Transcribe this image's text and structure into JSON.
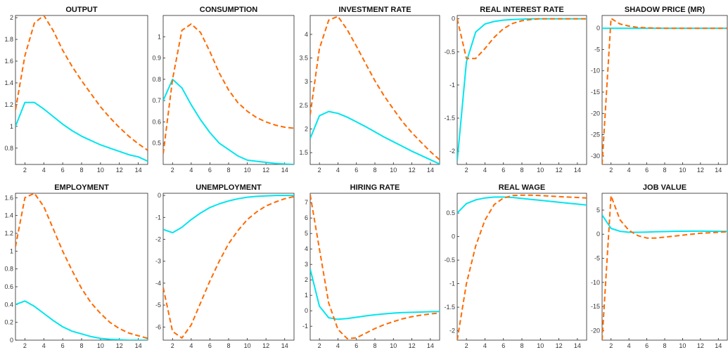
{
  "figure": {
    "colors": {
      "series_solid": "#00e5ee",
      "series_dashed": "#ff6a00",
      "axes": "#262626"
    }
  },
  "chart_data": [
    {
      "type": "line",
      "title": "OUTPUT",
      "xlim": [
        1,
        15
      ],
      "ylim": [
        0.65,
        2.02
      ],
      "xticks": [
        2,
        4,
        6,
        8,
        10,
        12,
        14
      ],
      "yticks": [
        0.8,
        1,
        1.2,
        1.4,
        1.6,
        1.8,
        2
      ],
      "xtick_labels": [
        "2",
        "4",
        "6",
        "8",
        "10",
        "12",
        "14"
      ],
      "ytick_labels": [
        "0.8",
        "1",
        "1.2",
        "1.4",
        "1.6",
        "1.8",
        "2"
      ],
      "x": [
        1,
        2,
        3,
        4,
        5,
        6,
        7,
        8,
        9,
        10,
        11,
        12,
        13,
        14,
        15
      ],
      "series": [
        {
          "style": "solid",
          "values": [
            1.0,
            1.22,
            1.22,
            1.16,
            1.09,
            1.02,
            0.96,
            0.91,
            0.87,
            0.83,
            0.8,
            0.77,
            0.74,
            0.72,
            0.68
          ]
        },
        {
          "style": "dashed",
          "values": [
            1.15,
            1.65,
            1.95,
            2.02,
            1.88,
            1.7,
            1.55,
            1.42,
            1.3,
            1.18,
            1.08,
            0.99,
            0.91,
            0.84,
            0.78
          ]
        }
      ]
    },
    {
      "type": "line",
      "title": "CONSUMPTION",
      "xlim": [
        1,
        15
      ],
      "ylim": [
        0.4,
        1.1
      ],
      "xticks": [
        2,
        4,
        6,
        8,
        10,
        12,
        14
      ],
      "yticks": [
        0.5,
        0.6,
        0.7,
        0.8,
        0.9,
        1
      ],
      "xtick_labels": [
        "2",
        "4",
        "6",
        "8",
        "10",
        "12",
        "14"
      ],
      "ytick_labels": [
        "0.5",
        "0.6",
        "0.7",
        "0.8",
        "0.9",
        "1"
      ],
      "x": [
        1,
        2,
        3,
        4,
        5,
        6,
        7,
        8,
        9,
        10,
        11,
        12,
        13,
        14,
        15
      ],
      "series": [
        {
          "style": "solid",
          "values": [
            0.7,
            0.8,
            0.76,
            0.68,
            0.61,
            0.55,
            0.5,
            0.47,
            0.44,
            0.42,
            0.415,
            0.41,
            0.405,
            0.402,
            0.4
          ]
        },
        {
          "style": "dashed",
          "values": [
            0.45,
            0.8,
            1.03,
            1.06,
            1.02,
            0.93,
            0.83,
            0.75,
            0.69,
            0.65,
            0.62,
            0.6,
            0.585,
            0.575,
            0.57
          ]
        }
      ]
    },
    {
      "type": "line",
      "title": "INVESTMENT RATE",
      "xlim": [
        1,
        15
      ],
      "ylim": [
        1.25,
        4.4
      ],
      "xticks": [
        2,
        4,
        6,
        8,
        10,
        12,
        14
      ],
      "yticks": [
        1.5,
        2,
        2.5,
        3,
        3.5,
        4
      ],
      "xtick_labels": [
        "2",
        "4",
        "6",
        "8",
        "10",
        "12",
        "14"
      ],
      "ytick_labels": [
        "1.5",
        "2",
        "2.5",
        "3",
        "3.5",
        "4"
      ],
      "x": [
        1,
        2,
        3,
        4,
        5,
        6,
        7,
        8,
        9,
        10,
        11,
        12,
        13,
        14,
        15
      ],
      "series": [
        {
          "style": "solid",
          "values": [
            1.8,
            2.28,
            2.37,
            2.33,
            2.25,
            2.15,
            2.05,
            1.94,
            1.83,
            1.73,
            1.63,
            1.53,
            1.44,
            1.35,
            1.26
          ]
        },
        {
          "style": "dashed",
          "values": [
            2.3,
            3.7,
            4.3,
            4.38,
            4.1,
            3.75,
            3.38,
            3.02,
            2.7,
            2.42,
            2.15,
            1.92,
            1.72,
            1.52,
            1.35
          ]
        }
      ]
    },
    {
      "type": "line",
      "title": "REAL INTEREST RATE",
      "xlim": [
        1,
        15
      ],
      "ylim": [
        -2.2,
        0.05
      ],
      "xticks": [
        2,
        4,
        6,
        8,
        10,
        12,
        14
      ],
      "yticks": [
        -2,
        -1.5,
        -1,
        -0.5,
        0
      ],
      "xtick_labels": [
        "2",
        "4",
        "6",
        "8",
        "10",
        "12",
        "14"
      ],
      "ytick_labels": [
        "-2",
        "-1.5",
        "-1",
        "-0.5",
        "0"
      ],
      "x": [
        1,
        2,
        3,
        4,
        5,
        6,
        7,
        8,
        9,
        10,
        11,
        12,
        13,
        14,
        15
      ],
      "series": [
        {
          "style": "solid",
          "values": [
            -2.15,
            -0.65,
            -0.2,
            -0.08,
            -0.04,
            -0.02,
            -0.01,
            -0.005,
            0,
            0,
            0,
            0,
            0,
            0,
            0
          ]
        },
        {
          "style": "dashed",
          "values": [
            0,
            -0.6,
            -0.6,
            -0.45,
            -0.28,
            -0.15,
            -0.07,
            -0.03,
            -0.01,
            0,
            0,
            0,
            0,
            0,
            0
          ]
        }
      ]
    },
    {
      "type": "line",
      "title": "SHADOW PRICE (MR)",
      "xlim": [
        1,
        15
      ],
      "ylim": [
        -32,
        3
      ],
      "xticks": [
        2,
        4,
        6,
        8,
        10,
        12,
        14
      ],
      "yticks": [
        -30,
        -25,
        -20,
        -15,
        -10,
        -5,
        0
      ],
      "xtick_labels": [
        "2",
        "4",
        "6",
        "8",
        "10",
        "12",
        "14"
      ],
      "ytick_labels": [
        "-30",
        "-25",
        "-20",
        "-15",
        "-10",
        "-5",
        "0"
      ],
      "x": [
        1,
        2,
        3,
        4,
        5,
        6,
        7,
        8,
        9,
        10,
        11,
        12,
        13,
        14,
        15
      ],
      "series": [
        {
          "style": "solid",
          "values": [
            0,
            0,
            0,
            0,
            0,
            0,
            0,
            0,
            0,
            0,
            0,
            0,
            0,
            0,
            0
          ]
        },
        {
          "style": "dashed",
          "values": [
            -32,
            2.3,
            1.0,
            0.5,
            0.2,
            0.1,
            0.05,
            0,
            0,
            0,
            0,
            0,
            0,
            0,
            0
          ]
        }
      ]
    },
    {
      "type": "line",
      "title": "EMPLOYMENT",
      "xlim": [
        1,
        15
      ],
      "ylim": [
        0,
        1.65
      ],
      "xticks": [
        2,
        4,
        6,
        8,
        10,
        12,
        14
      ],
      "yticks": [
        0,
        0.2,
        0.4,
        0.6,
        0.8,
        1,
        1.2,
        1.4,
        1.6
      ],
      "xtick_labels": [
        "2",
        "4",
        "6",
        "8",
        "10",
        "12",
        "14"
      ],
      "ytick_labels": [
        "0",
        "0.2",
        "0.4",
        "0.6",
        "0.8",
        "1",
        "1.2",
        "1.4",
        "1.6"
      ],
      "x": [
        1,
        2,
        3,
        4,
        5,
        6,
        7,
        8,
        9,
        10,
        11,
        12,
        13,
        14,
        15
      ],
      "series": [
        {
          "style": "solid",
          "values": [
            0.4,
            0.44,
            0.38,
            0.3,
            0.22,
            0.15,
            0.1,
            0.07,
            0.04,
            0.02,
            0.01,
            0.005,
            0,
            0,
            0
          ]
        },
        {
          "style": "dashed",
          "values": [
            1.05,
            1.6,
            1.65,
            1.5,
            1.25,
            1.0,
            0.78,
            0.58,
            0.42,
            0.3,
            0.2,
            0.13,
            0.08,
            0.05,
            0.02
          ]
        }
      ]
    },
    {
      "type": "line",
      "title": "UNEMPLOYMENT",
      "xlim": [
        1,
        15
      ],
      "ylim": [
        -6.6,
        0.1
      ],
      "xticks": [
        2,
        4,
        6,
        8,
        10,
        12,
        14
      ],
      "yticks": [
        -6,
        -5,
        -4,
        -3,
        -2,
        -1,
        0
      ],
      "xtick_labels": [
        "2",
        "4",
        "6",
        "8",
        "10",
        "12",
        "14"
      ],
      "ytick_labels": [
        "-6",
        "-5",
        "-4",
        "-3",
        "-2",
        "-1",
        "0"
      ],
      "x": [
        1,
        2,
        3,
        4,
        5,
        6,
        7,
        8,
        9,
        10,
        11,
        12,
        13,
        14,
        15
      ],
      "series": [
        {
          "style": "solid",
          "values": [
            -1.55,
            -1.7,
            -1.45,
            -1.1,
            -0.8,
            -0.55,
            -0.38,
            -0.25,
            -0.15,
            -0.08,
            -0.04,
            -0.02,
            0,
            0,
            0
          ]
        },
        {
          "style": "dashed",
          "values": [
            -4.2,
            -6.2,
            -6.5,
            -5.9,
            -4.9,
            -3.9,
            -3.0,
            -2.2,
            -1.6,
            -1.1,
            -0.75,
            -0.48,
            -0.3,
            -0.15,
            -0.05
          ]
        }
      ]
    },
    {
      "type": "line",
      "title": "HIRING RATE",
      "xlim": [
        1,
        15
      ],
      "ylim": [
        -1.9,
        7.6
      ],
      "xticks": [
        2,
        4,
        6,
        8,
        10,
        12,
        14
      ],
      "yticks": [
        -1,
        0,
        1,
        2,
        3,
        4,
        5,
        6,
        7
      ],
      "xtick_labels": [
        "2",
        "4",
        "6",
        "8",
        "10",
        "12",
        "14"
      ],
      "ytick_labels": [
        "-1",
        "0",
        "1",
        "2",
        "3",
        "4",
        "5",
        "6",
        "7"
      ],
      "x": [
        1,
        2,
        3,
        4,
        5,
        6,
        7,
        8,
        9,
        10,
        11,
        12,
        13,
        14,
        15
      ],
      "series": [
        {
          "style": "solid",
          "values": [
            2.7,
            0.3,
            -0.45,
            -0.55,
            -0.5,
            -0.42,
            -0.33,
            -0.26,
            -0.2,
            -0.15,
            -0.12,
            -0.1,
            -0.08,
            -0.06,
            -0.05
          ]
        },
        {
          "style": "dashed",
          "values": [
            7.5,
            4.0,
            0.5,
            -1.2,
            -1.8,
            -1.75,
            -1.45,
            -1.15,
            -0.9,
            -0.7,
            -0.52,
            -0.38,
            -0.28,
            -0.2,
            -0.15
          ]
        }
      ]
    },
    {
      "type": "line",
      "title": "REAL WAGE",
      "xlim": [
        1,
        15
      ],
      "ylim": [
        -2.2,
        0.92
      ],
      "xticks": [
        2,
        4,
        6,
        8,
        10,
        12,
        14
      ],
      "yticks": [
        -2,
        -1.5,
        -1,
        -0.5,
        0,
        0.5
      ],
      "xtick_labels": [
        "2",
        "4",
        "6",
        "8",
        "10",
        "12",
        "14"
      ],
      "ytick_labels": [
        "-2",
        "-1.5",
        "-1",
        "-0.5",
        "0",
        "0.5"
      ],
      "x": [
        1,
        2,
        3,
        4,
        5,
        6,
        7,
        8,
        9,
        10,
        11,
        12,
        13,
        14,
        15
      ],
      "series": [
        {
          "style": "solid",
          "values": [
            0.5,
            0.7,
            0.78,
            0.82,
            0.84,
            0.84,
            0.83,
            0.81,
            0.79,
            0.77,
            0.75,
            0.73,
            0.71,
            0.69,
            0.67
          ]
        },
        {
          "style": "dashed",
          "values": [
            -2.2,
            -1.0,
            -0.2,
            0.35,
            0.68,
            0.82,
            0.87,
            0.88,
            0.88,
            0.87,
            0.86,
            0.85,
            0.84,
            0.83,
            0.82
          ]
        }
      ]
    },
    {
      "type": "line",
      "title": "JOB VALUE",
      "xlim": [
        1,
        15
      ],
      "ylim": [
        -22,
        8.5
      ],
      "xticks": [
        2,
        4,
        6,
        8,
        10,
        12,
        14
      ],
      "yticks": [
        -20,
        -15,
        -10,
        -5,
        0,
        5
      ],
      "xtick_labels": [
        "2",
        "4",
        "6",
        "8",
        "10",
        "12",
        "14"
      ],
      "ytick_labels": [
        "-20",
        "-15",
        "-10",
        "-5",
        "0",
        "5"
      ],
      "x": [
        1,
        2,
        3,
        4,
        5,
        6,
        7,
        8,
        9,
        10,
        11,
        12,
        13,
        14,
        15
      ],
      "series": [
        {
          "style": "solid",
          "values": [
            4.0,
            1.2,
            0.6,
            0.4,
            0.4,
            0.45,
            0.5,
            0.55,
            0.6,
            0.62,
            0.63,
            0.63,
            0.62,
            0.6,
            0.58
          ]
        },
        {
          "style": "dashed",
          "values": [
            -22,
            8.0,
            3.0,
            0.8,
            -0.3,
            -0.8,
            -0.8,
            -0.6,
            -0.4,
            -0.2,
            0,
            0.2,
            0.3,
            0.4,
            0.5
          ]
        }
      ]
    }
  ]
}
